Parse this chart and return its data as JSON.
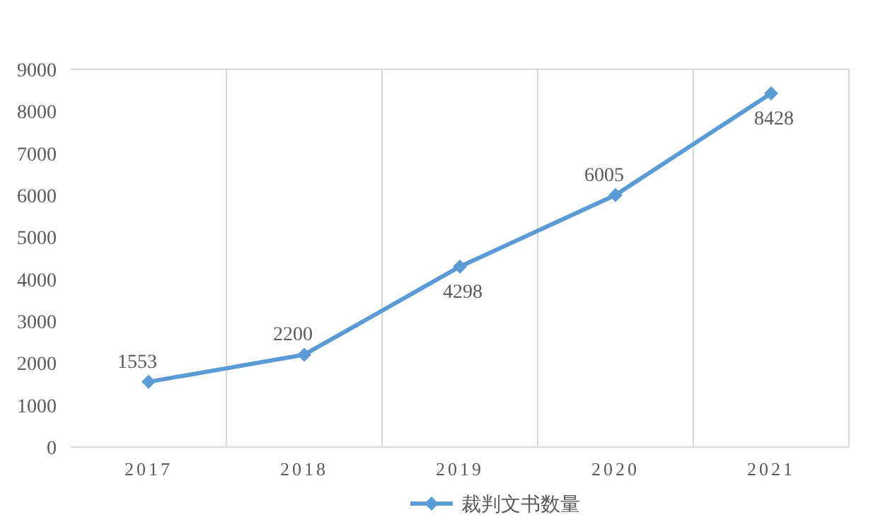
{
  "chart_data": {
    "type": "line",
    "categories": [
      "2017",
      "2018",
      "2019",
      "2020",
      "2021"
    ],
    "series": [
      {
        "name": "裁判文书数量",
        "color": "#5b9bd5",
        "values": [
          1553,
          2200,
          4298,
          6005,
          8428
        ]
      }
    ],
    "ylim": [
      0,
      9000
    ],
    "yticks": [
      0,
      1000,
      2000,
      3000,
      4000,
      5000,
      6000,
      7000,
      8000,
      9000
    ],
    "grid": "x",
    "legend": "bottom",
    "marker": "diamond",
    "line_style": "solid",
    "data_labels": true
  }
}
